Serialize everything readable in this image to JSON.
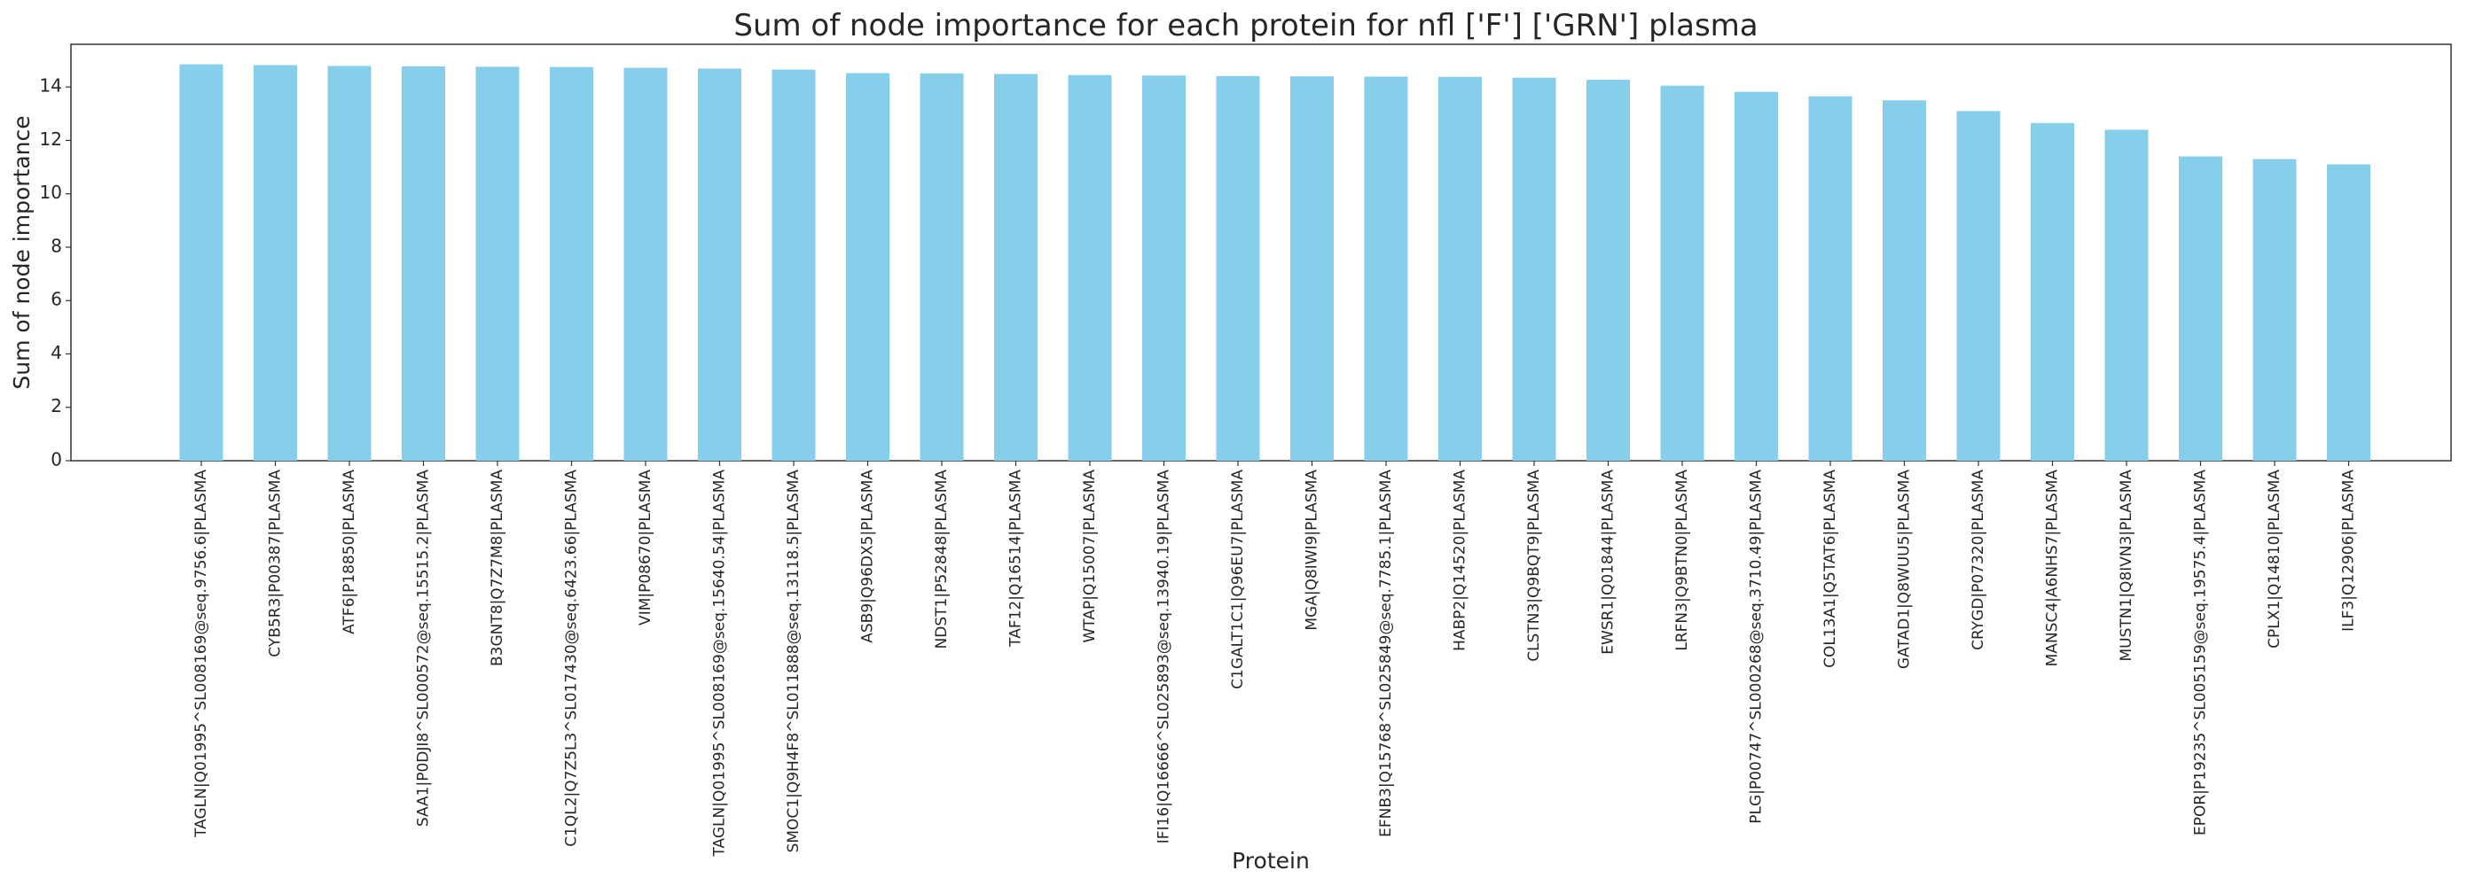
{
  "chart_data": {
    "type": "bar",
    "title": "Sum of node importance for each protein for nfl ['F'] ['GRN'] plasma",
    "xlabel": "Protein",
    "ylabel": "Sum of node importance",
    "ylim": [
      0,
      15.6
    ],
    "yticks": [
      0,
      2,
      4,
      6,
      8,
      10,
      12,
      14
    ],
    "grid": false,
    "bar_color": "#87CEEB",
    "categories": [
      "TAGLN|Q01995^SL008169@seq.9756.6|PLASMA",
      "CYB5R3|P00387|PLASMA",
      "ATF6|P18850|PLASMA",
      "SAA1|P0DJI8^SL000572@seq.15515.2|PLASMA",
      "B3GNT8|Q7Z7M8|PLASMA",
      "C1QL2|Q7Z5L3^SL017430@seq.6423.66|PLASMA",
      "VIM|P08670|PLASMA",
      "TAGLN|Q01995^SL008169@seq.15640.54|PLASMA",
      "SMOC1|Q9H4F8^SL011888@seq.13118.5|PLASMA",
      "ASB9|Q96DX5|PLASMA",
      "NDST1|P52848|PLASMA",
      "TAF12|Q16514|PLASMA",
      "WTAP|Q15007|PLASMA",
      "IFI16|Q16666^SL025893@seq.13940.19|PLASMA",
      "C1GALT1C1|Q96EU7|PLASMA",
      "MGA|Q8IWI9|PLASMA",
      "EFNB3|Q15768^SL025849@seq.7785.1|PLASMA",
      "HABP2|Q14520|PLASMA",
      "CLSTN3|Q9BQT9|PLASMA",
      "EWSR1|Q01844|PLASMA",
      "LRFN3|Q9BTN0|PLASMA",
      "PLG|P00747^SL000268@seq.3710.49|PLASMA",
      "COL13A1|Q5TAT6|PLASMA",
      "GATAD1|Q8WUU5|PLASMA",
      "CRYGD|P07320|PLASMA",
      "MANSC4|A6NHS7|PLASMA",
      "MUSTN1|Q8IVN3|PLASMA",
      "EPOR|P19235^SL005159@seq.19575.4|PLASMA",
      "CPLX1|Q14810|PLASMA",
      "ILF3|Q12906|PLASMA"
    ],
    "values": [
      14.85,
      14.82,
      14.79,
      14.77,
      14.76,
      14.75,
      14.72,
      14.69,
      14.65,
      14.52,
      14.51,
      14.49,
      14.45,
      14.43,
      14.41,
      14.4,
      14.39,
      14.38,
      14.35,
      14.27,
      14.05,
      13.82,
      13.65,
      13.5,
      13.1,
      12.65,
      12.4,
      11.4,
      11.3,
      11.1
    ]
  }
}
